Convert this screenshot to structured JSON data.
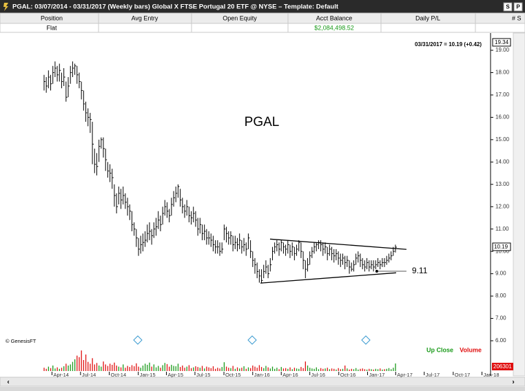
{
  "window": {
    "title": "PGAL:  03/07/2014 - 03/31/2017  (Weekly bars)  Global X FTSE Portugal 20 ETF @ NYSE  –  Template: Default",
    "buttons": [
      "S",
      "P"
    ]
  },
  "account": {
    "columns": [
      "Position",
      "Avg Entry",
      "Open Equity",
      "Acct Balance",
      "Daily P/L",
      "# S"
    ],
    "position": "Flat",
    "acct_balance": "$2,084,498.52"
  },
  "chart_data": {
    "type": "ohlc",
    "symbol_label": "PGAL",
    "last_label": "03/31/2017 = 10.19 (+0.42)",
    "copyright": "© GenesisFT",
    "color": "#000000",
    "high": [
      17.9,
      17.8,
      18.1,
      17.9,
      18.3,
      18.5,
      18.3,
      18.4,
      18.0,
      18.2,
      17.6,
      17.8,
      18.3,
      18.5,
      18.4,
      18.3,
      18.0,
      17.6,
      17.2,
      16.7,
      16.4,
      16.2,
      15.8,
      14.6,
      14.4,
      15.0,
      15.1,
      15.1,
      14.6,
      14.0,
      13.9,
      13.7,
      13.0,
      12.6,
      12.9,
      12.8,
      12.9,
      12.6,
      12.4,
      12.1,
      11.8,
      11.3,
      11.0,
      10.6,
      10.7,
      10.8,
      10.9,
      11.2,
      11.3,
      11.0,
      11.3,
      11.5,
      11.8,
      11.6,
      12.0,
      12.3,
      12.2,
      11.9,
      12.4,
      12.7,
      12.9,
      13.0,
      12.8,
      12.4,
      12.1,
      12.3,
      12.0,
      11.8,
      12.0,
      11.8,
      11.5,
      11.5,
      11.2,
      11.2,
      11.0,
      10.9,
      10.8,
      10.7,
      10.5,
      10.5,
      10.4,
      10.4,
      11.2,
      11.1,
      10.9,
      10.9,
      10.7,
      10.7,
      10.6,
      10.8,
      10.5,
      10.6,
      10.4,
      10.8,
      10.5,
      10.0,
      9.7,
      9.5,
      9.2,
      9.2,
      9.4,
      9.6,
      9.4,
      9.7,
      10.2,
      10.4,
      10.5,
      10.4,
      10.5,
      10.4,
      10.3,
      10.5,
      10.3,
      10.4,
      10.2,
      10.3,
      10.5,
      10.4,
      10.0,
      9.6,
      9.7,
      10.0,
      10.2,
      10.4,
      10.4,
      10.5,
      10.5,
      10.4,
      10.4,
      10.2,
      10.3,
      10.2,
      10.1,
      10.1,
      10.0,
      9.9,
      9.9,
      9.8,
      9.8,
      9.6,
      9.5,
      9.6,
      9.9,
      10.0,
      9.9,
      9.7,
      9.6,
      9.7,
      9.6,
      9.6,
      9.6,
      9.6,
      9.7,
      9.6,
      9.7,
      9.7,
      9.8,
      9.9,
      10.0,
      10.2,
      10.3
    ],
    "low": [
      17.2,
      17.1,
      17.3,
      17.2,
      17.5,
      17.8,
      17.6,
      17.6,
      17.3,
      17.4,
      16.7,
      16.9,
      17.5,
      17.8,
      17.9,
      17.5,
      17.3,
      16.8,
      16.3,
      15.8,
      15.6,
      15.3,
      13.9,
      13.5,
      13.4,
      14.0,
      14.6,
      14.2,
      13.6,
      13.3,
      13.1,
      12.8,
      12.0,
      11.7,
      12.1,
      11.9,
      12.1,
      11.9,
      11.6,
      11.4,
      10.9,
      10.7,
      10.2,
      9.8,
      9.9,
      10.0,
      10.2,
      10.4,
      10.5,
      10.3,
      10.6,
      10.7,
      11.0,
      10.9,
      11.2,
      11.6,
      11.5,
      11.3,
      11.6,
      12.0,
      12.2,
      12.4,
      12.0,
      11.7,
      11.5,
      11.6,
      11.3,
      11.2,
      11.3,
      11.1,
      10.7,
      10.8,
      10.5,
      10.5,
      10.3,
      10.3,
      10.2,
      10.0,
      9.9,
      9.9,
      9.8,
      9.9,
      10.5,
      10.4,
      10.3,
      10.3,
      10.0,
      10.1,
      10.0,
      10.1,
      9.9,
      10.0,
      9.8,
      10.1,
      9.7,
      9.3,
      9.0,
      8.8,
      8.6,
      8.6,
      8.8,
      9.0,
      8.8,
      9.1,
      9.6,
      9.9,
      10.0,
      9.8,
      10.0,
      9.9,
      9.8,
      9.9,
      9.7,
      9.8,
      9.6,
      9.8,
      10.0,
      9.7,
      9.2,
      8.8,
      9.1,
      9.4,
      9.7,
      9.9,
      10.0,
      10.1,
      10.0,
      9.8,
      9.9,
      9.6,
      9.8,
      9.6,
      9.5,
      9.6,
      9.4,
      9.3,
      9.4,
      9.2,
      9.3,
      9.0,
      9.1,
      9.1,
      9.4,
      9.5,
      9.3,
      9.2,
      9.1,
      9.2,
      9.1,
      9.2,
      9.1,
      9.2,
      9.3,
      9.2,
      9.3,
      9.3,
      9.4,
      9.5,
      9.6,
      9.8,
      9.95
    ],
    "close": [
      17.6,
      17.4,
      17.8,
      17.5,
      18.0,
      18.2,
      17.9,
      18.1,
      17.6,
      17.8,
      16.9,
      17.4,
      18.0,
      18.2,
      18.3,
      17.9,
      17.6,
      17.2,
      16.6,
      16.2,
      16.0,
      15.9,
      14.8,
      13.9,
      13.8,
      14.7,
      15.0,
      14.6,
      14.1,
      13.6,
      13.5,
      13.3,
      12.5,
      12.0,
      12.6,
      12.3,
      12.5,
      12.2,
      12.0,
      11.8,
      11.2,
      11.0,
      10.6,
      10.1,
      10.3,
      10.4,
      10.5,
      10.8,
      10.9,
      10.7,
      11.0,
      11.1,
      11.4,
      11.2,
      11.7,
      12.0,
      11.8,
      11.6,
      12.1,
      12.4,
      12.6,
      12.9,
      12.3,
      12.0,
      11.8,
      12.0,
      11.6,
      11.5,
      11.7,
      11.4,
      11.0,
      11.2,
      10.8,
      10.9,
      10.6,
      10.6,
      10.5,
      10.3,
      10.2,
      10.2,
      10.0,
      10.1,
      11.0,
      10.8,
      10.6,
      10.7,
      10.3,
      10.4,
      10.3,
      10.5,
      10.2,
      10.3,
      10.1,
      10.6,
      10.0,
      9.6,
      9.4,
      9.1,
      8.9,
      8.7,
      9.1,
      9.3,
      9.0,
      9.4,
      10.0,
      10.2,
      10.3,
      10.1,
      10.4,
      10.2,
      10.1,
      10.3,
      10.0,
      10.2,
      9.9,
      10.1,
      10.4,
      10.0,
      9.6,
      9.2,
      9.4,
      9.8,
      10.0,
      10.2,
      10.3,
      10.4,
      10.3,
      10.1,
      10.2,
      9.9,
      10.1,
      9.9,
      9.8,
      9.9,
      9.7,
      9.6,
      9.7,
      9.5,
      9.6,
      9.3,
      9.2,
      9.4,
      9.7,
      9.8,
      9.6,
      9.4,
      9.3,
      9.5,
      9.3,
      9.4,
      9.3,
      9.4,
      9.5,
      9.4,
      9.5,
      9.5,
      9.6,
      9.7,
      9.8,
      10.0,
      10.19
    ],
    "xlim": [
      -18.5,
      203.3
    ],
    "xticks": [
      {
        "value": 3.6,
        "label": "Apr-14"
      },
      {
        "value": 16.6,
        "label": "Jul-14"
      },
      {
        "value": 29.7,
        "label": "Oct-14"
      },
      {
        "value": 42.9,
        "label": "Jan-15"
      },
      {
        "value": 55.7,
        "label": "Apr-15"
      },
      {
        "value": 68.7,
        "label": "Jul-15"
      },
      {
        "value": 81.9,
        "label": "Oct-15"
      },
      {
        "value": 95.0,
        "label": "Jan-16"
      },
      {
        "value": 108.0,
        "label": "Apr-16"
      },
      {
        "value": 121.0,
        "label": "Jul-16"
      },
      {
        "value": 134.2,
        "label": "Oct-16"
      },
      {
        "value": 147.3,
        "label": "Jan-17"
      },
      {
        "value": 160.1,
        "label": "Apr-17"
      },
      {
        "value": 173.1,
        "label": "Jul-17"
      },
      {
        "value": 186.3,
        "label": "Oct-17"
      },
      {
        "value": 199.4,
        "label": "Jan-18"
      }
    ],
    "ylim": [
      5.8,
      19.34
    ],
    "yticks": [
      {
        "value": 6,
        "label": "6.00"
      },
      {
        "value": 7,
        "label": "7.00"
      },
      {
        "value": 8,
        "label": "8.00"
      },
      {
        "value": 9,
        "label": "9.00"
      },
      {
        "value": 10,
        "label": "10.00"
      },
      {
        "value": 11,
        "label": "11.00"
      },
      {
        "value": 12,
        "label": "12.00"
      },
      {
        "value": 13,
        "label": "13.00"
      },
      {
        "value": 14,
        "label": "14.00"
      },
      {
        "value": 15,
        "label": "15.00"
      },
      {
        "value": 16,
        "label": "16.00"
      },
      {
        "value": 17,
        "label": "17.00"
      },
      {
        "value": 18,
        "label": "18.00"
      },
      {
        "value": 19,
        "label": "19.00"
      }
    ],
    "grid": false,
    "trendlines": [
      {
        "x": [
          102.9,
          165
        ],
        "y": [
          10.55,
          10.09
        ]
      },
      {
        "x": [
          98.5,
          160.3
        ],
        "y": [
          8.58,
          9.04
        ]
      }
    ],
    "level": {
      "value": 9.11,
      "x": [
        151.5,
        165
      ]
    },
    "volume": {
      "legend": [
        "Up Close",
        "Volume"
      ],
      "up_color": "#1a9a1a",
      "down_color": "#e01010",
      "ylim": [
        0,
        600000
      ],
      "values": [
        90000,
        60000,
        120000,
        80000,
        150000,
        70000,
        100000,
        60000,
        90000,
        130000,
        200000,
        150000,
        180000,
        250000,
        320000,
        420000,
        380000,
        560000,
        300000,
        450000,
        250000,
        200000,
        350000,
        180000,
        220000,
        150000,
        120000,
        260000,
        180000,
        140000,
        200000,
        170000,
        230000,
        150000,
        120000,
        100000,
        180000,
        90000,
        140000,
        110000,
        160000,
        130000,
        210000,
        120000,
        90000,
        150000,
        200000,
        170000,
        230000,
        120000,
        180000,
        100000,
        140000,
        90000,
        160000,
        220000,
        190000,
        120000,
        170000,
        140000,
        130000,
        200000,
        110000,
        150000,
        90000,
        120000,
        160000,
        80000,
        100000,
        130000,
        110000,
        90000,
        140000,
        70000,
        120000,
        100000,
        80000,
        130000,
        60000,
        90000,
        70000,
        110000,
        240000,
        120000,
        90000,
        80000,
        140000,
        60000,
        100000,
        70000,
        90000,
        130000,
        60000,
        100000,
        80000,
        150000,
        120000,
        90000,
        160000,
        110000,
        80000,
        140000,
        100000,
        70000,
        120000,
        60000,
        90000,
        50000,
        110000,
        70000,
        80000,
        60000,
        100000,
        50000,
        90000,
        70000,
        60000,
        110000,
        80000,
        260000,
        150000,
        90000,
        70000,
        60000,
        100000,
        50000,
        80000,
        60000,
        70000,
        90000,
        50000,
        70000,
        60000,
        40000,
        80000,
        50000,
        60000,
        150000,
        70000,
        40000,
        60000,
        50000,
        80000,
        40000,
        60000,
        70000,
        50000,
        40000,
        60000,
        50000,
        40000,
        60000,
        50000,
        70000,
        40000,
        50000,
        60000,
        80000,
        50000,
        90000,
        206301
      ]
    }
  }
}
